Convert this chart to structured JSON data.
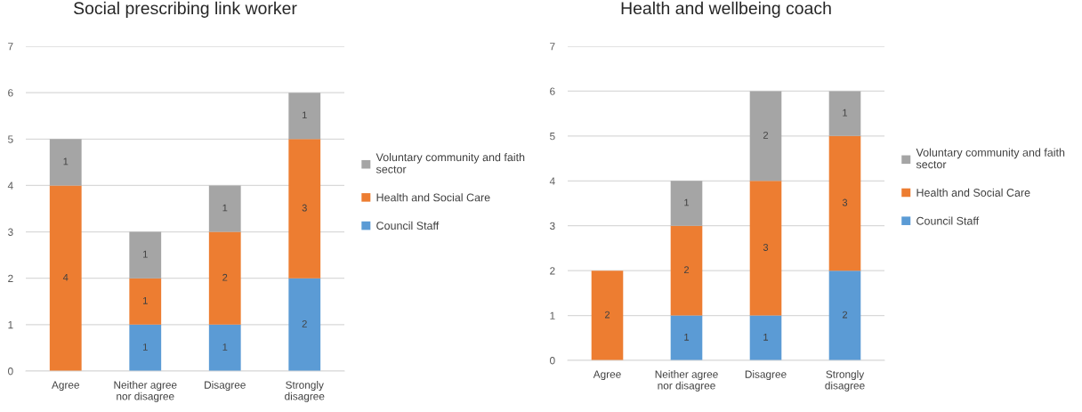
{
  "chart_data": [
    {
      "type": "bar",
      "title": "Social prescribing link worker",
      "categories": [
        "Agree",
        "Neither agree nor disagree",
        "Disagree",
        "Strongly disagree"
      ],
      "stacked": true,
      "series": [
        {
          "name": "Council Staff",
          "color": "#5b9bd5",
          "values": [
            null,
            1,
            1,
            2
          ]
        },
        {
          "name": "Health and Social Care",
          "color": "#ed7d31",
          "values": [
            4,
            1,
            2,
            3
          ]
        },
        {
          "name": "Voluntary community and faith sector",
          "color": "#a5a5a5",
          "values": [
            1,
            1,
            1,
            1
          ]
        }
      ],
      "ylim": [
        0,
        7
      ],
      "yticks": [
        0,
        1,
        2,
        3,
        4,
        5,
        6,
        7
      ],
      "grid": "y",
      "legend": "right",
      "data_labels": true
    },
    {
      "type": "bar",
      "title": "Health and wellbeing coach",
      "categories": [
        "Agree",
        "Neither agree nor disagree",
        "Disagree",
        "Strongly disagree"
      ],
      "stacked": true,
      "series": [
        {
          "name": "Council Staff",
          "color": "#5b9bd5",
          "values": [
            null,
            1,
            1,
            2
          ]
        },
        {
          "name": "Health and Social Care",
          "color": "#ed7d31",
          "values": [
            2,
            2,
            3,
            3
          ]
        },
        {
          "name": "Voluntary community and faith sector",
          "color": "#a5a5a5",
          "values": [
            null,
            1,
            2,
            1
          ]
        }
      ],
      "ylim": [
        0,
        7
      ],
      "yticks": [
        0,
        1,
        2,
        3,
        4,
        5,
        6,
        7
      ],
      "grid": "y",
      "legend": "right",
      "data_labels": true
    }
  ]
}
